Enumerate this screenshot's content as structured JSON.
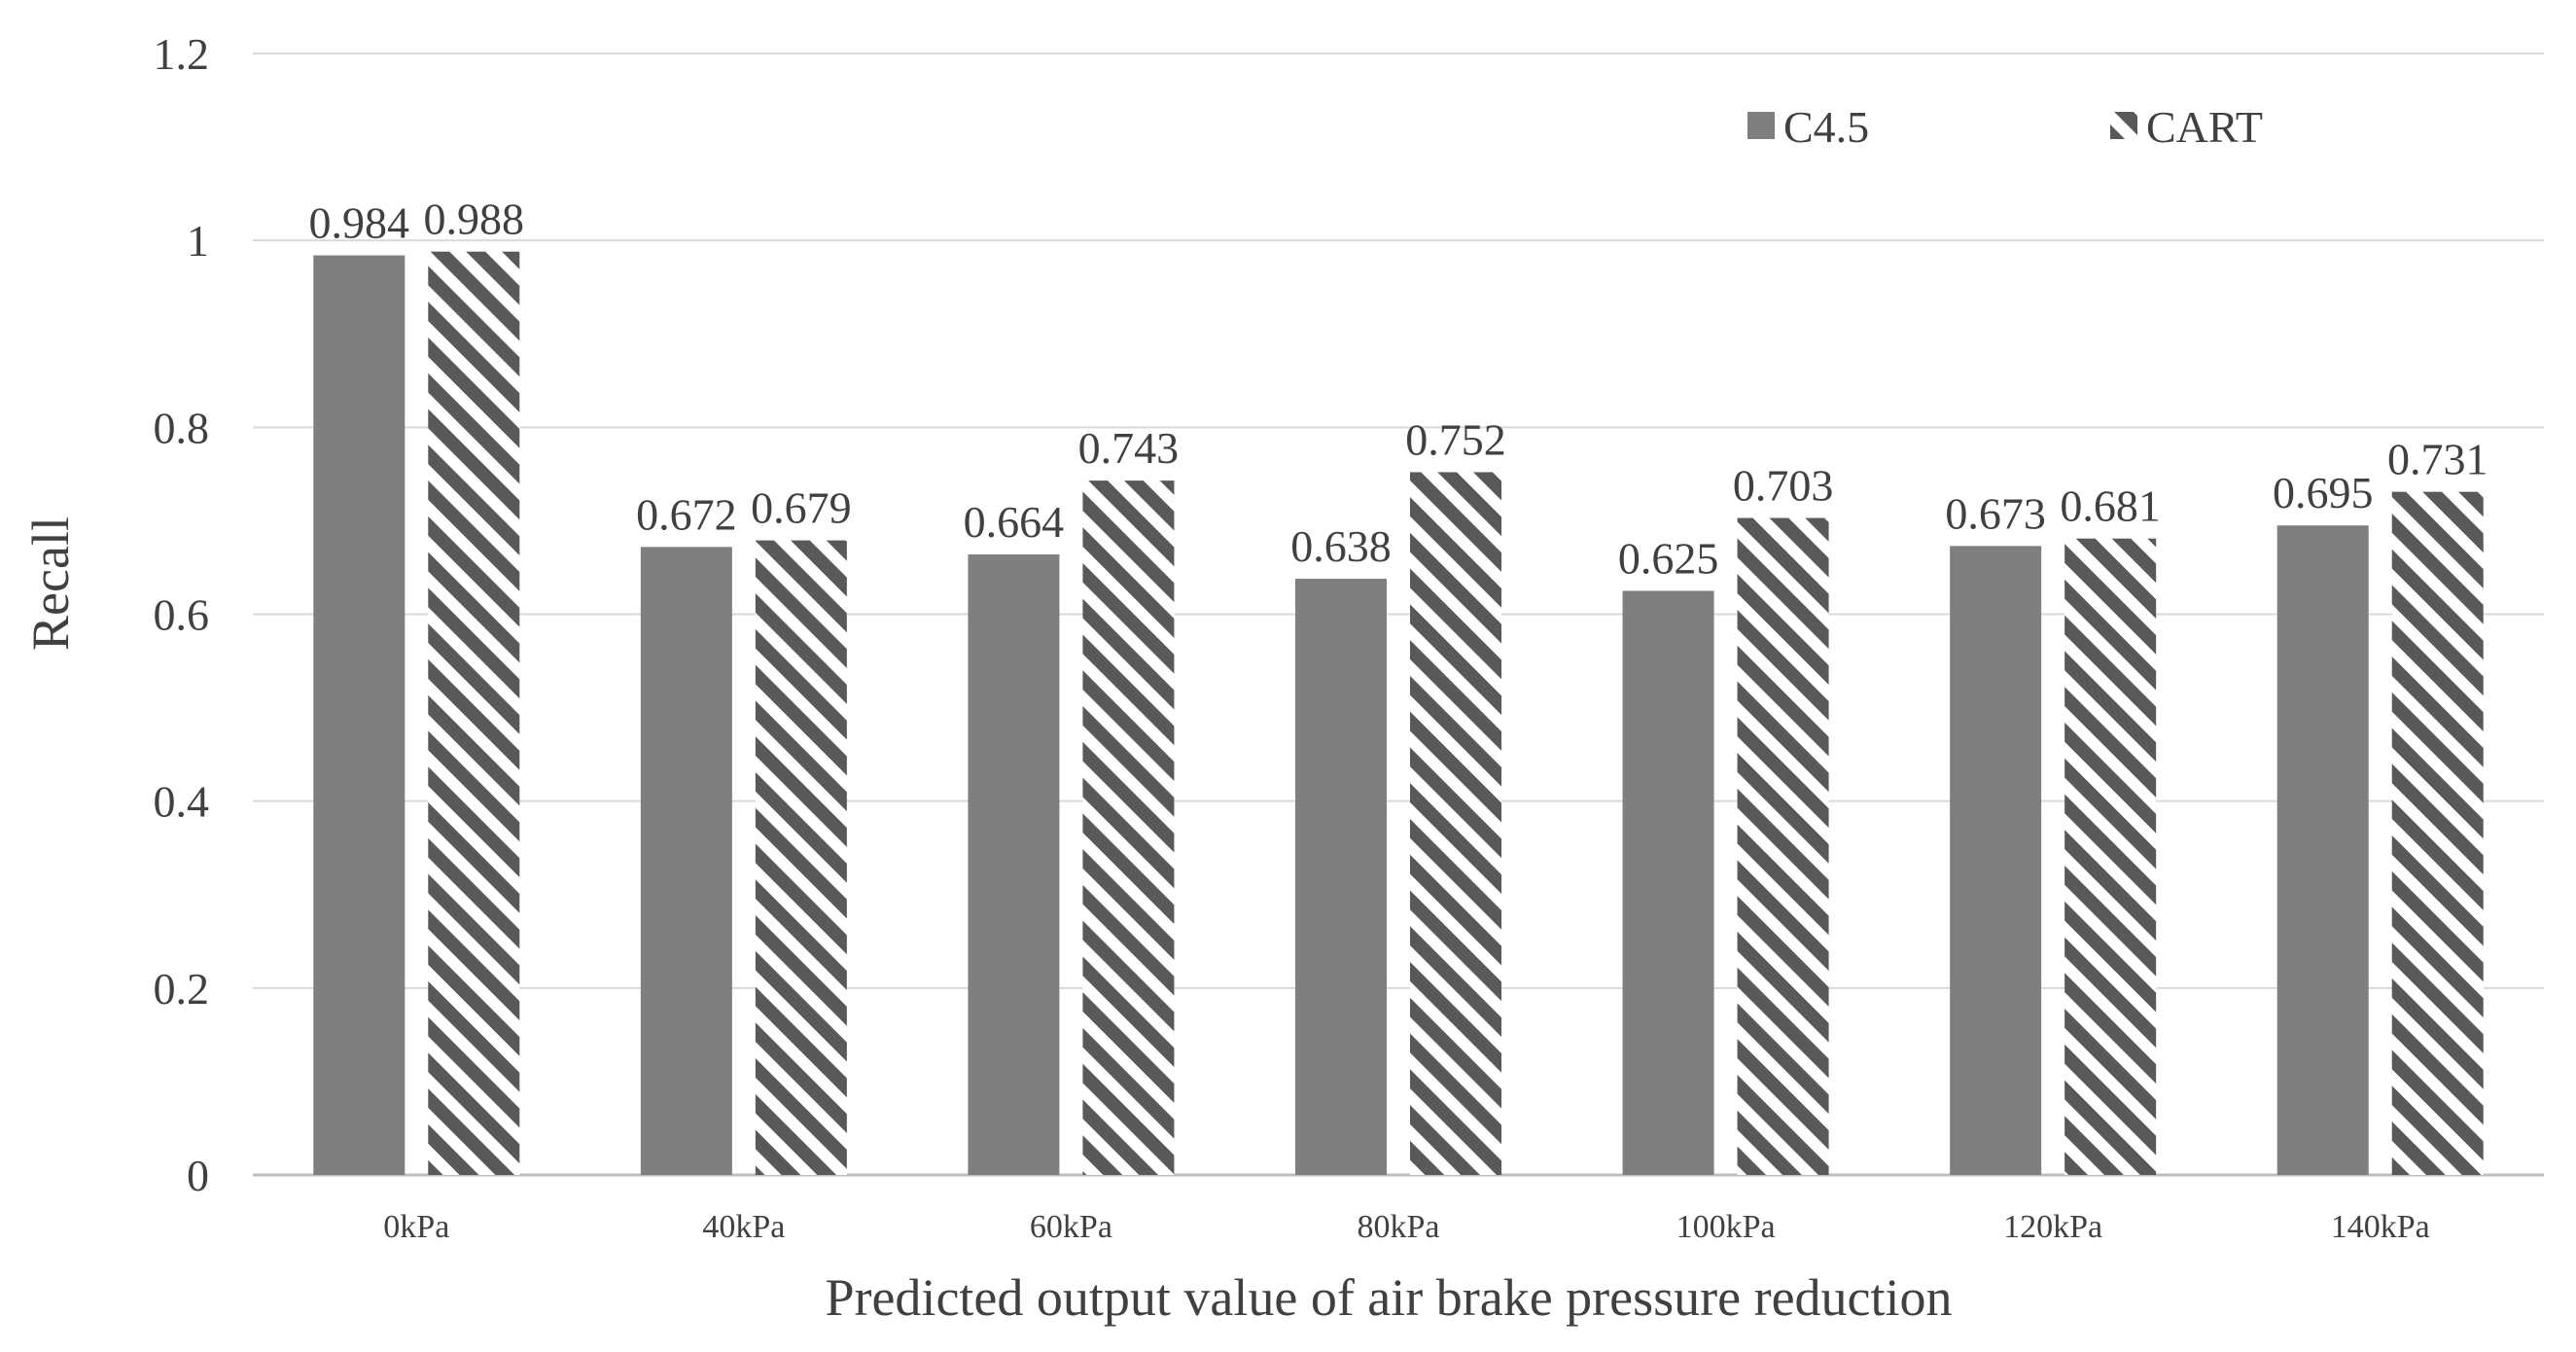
{
  "chart_data": {
    "type": "bar",
    "title": "",
    "xlabel": "Predicted output value of air brake pressure reduction",
    "ylabel": "Recall",
    "categories": [
      "0kPa",
      "40kPa",
      "60kPa",
      "80kPa",
      "100kPa",
      "120kPa",
      "140kPa"
    ],
    "ylim": [
      0,
      1.2
    ],
    "yticks": [
      0,
      0.2,
      0.4,
      0.6,
      0.8,
      1,
      1.2
    ],
    "ytick_labels": [
      "0",
      "0.2",
      "0.4",
      "0.6",
      "0.8",
      "1",
      "1.2"
    ],
    "grid": true,
    "legend_position": "top-right",
    "series": [
      {
        "name": "C4.5",
        "pattern": "solid",
        "values": [
          0.984,
          0.672,
          0.664,
          0.638,
          0.625,
          0.673,
          0.695
        ],
        "labels": [
          "0.984",
          "0.672",
          "0.664",
          "0.638",
          "0.625",
          "0.673",
          "0.695"
        ]
      },
      {
        "name": "CART",
        "pattern": "diagonal-hatch",
        "values": [
          0.988,
          0.679,
          0.743,
          0.752,
          0.703,
          0.681,
          0.731
        ],
        "labels": [
          "0.988",
          "0.679",
          "0.743",
          "0.752",
          "0.703",
          "0.681",
          "0.731"
        ]
      }
    ]
  },
  "colors": {
    "c45_fill": "#7f7f7f",
    "cart_stripe": "#595959",
    "cart_background": "#ffffff",
    "gridline": "#d9d9d9",
    "axis_line": "#bfbfbf",
    "text": "#404040"
  }
}
